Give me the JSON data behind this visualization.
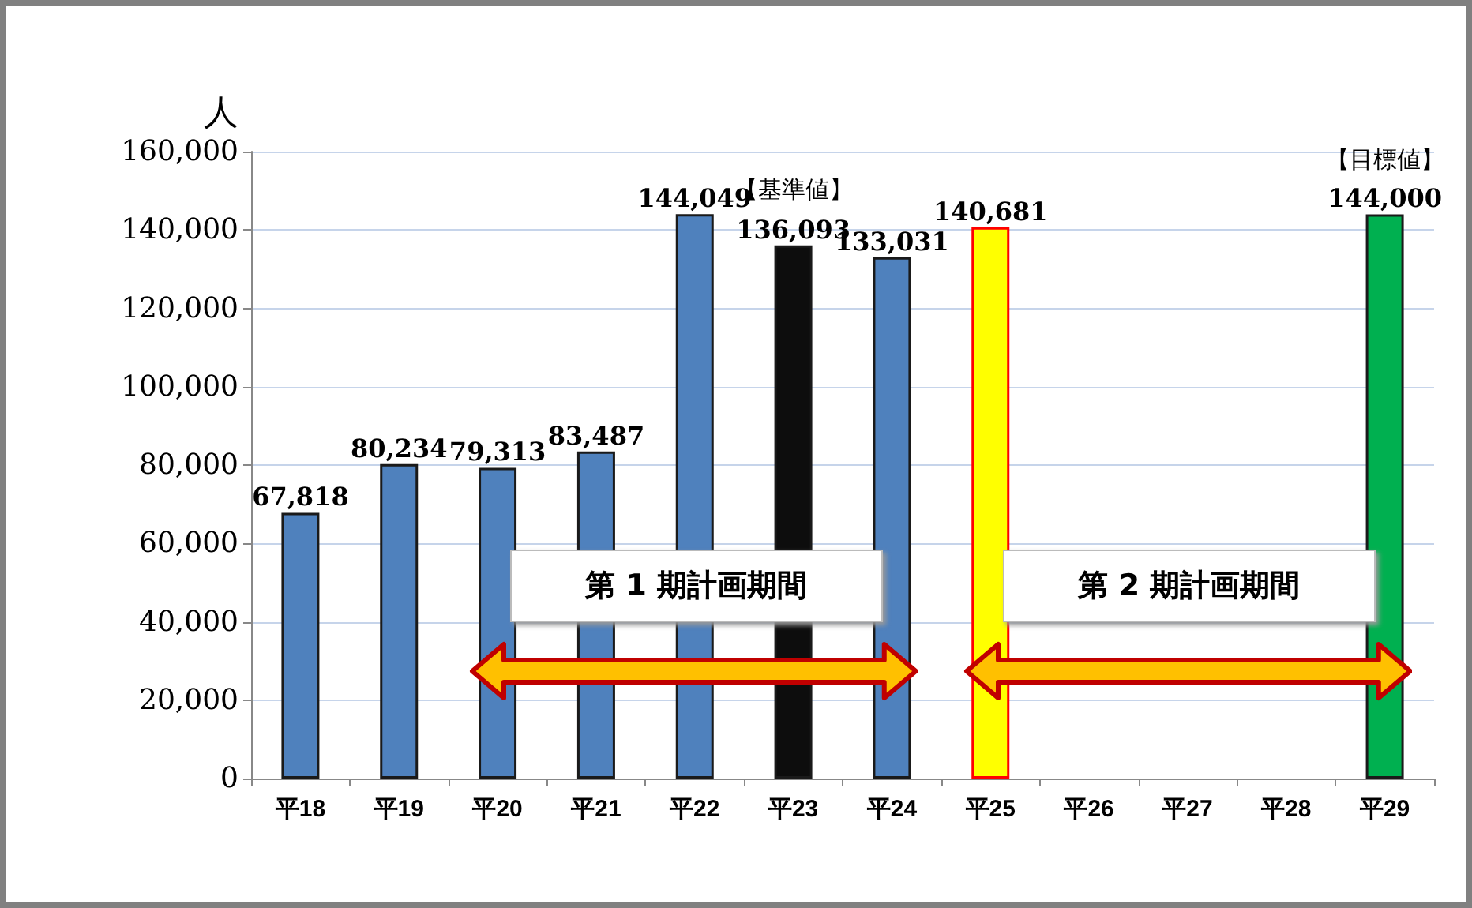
{
  "chart_data": {
    "type": "bar",
    "ylabel": "人",
    "categories": [
      "平18",
      "平19",
      "平20",
      "平21",
      "平22",
      "平23",
      "平24",
      "平25",
      "平26",
      "平27",
      "平28",
      "平29"
    ],
    "values": [
      67818,
      80234,
      79313,
      83487,
      144049,
      136093,
      133031,
      140681,
      null,
      null,
      null,
      144000
    ],
    "value_labels": [
      "67,818",
      "80,234",
      "79,313",
      "83,487",
      "144,049",
      "136,093",
      "133,031",
      "140,681",
      null,
      null,
      null,
      "144,000"
    ],
    "colors": [
      "#4f81bd",
      "#4f81bd",
      "#4f81bd",
      "#4f81bd",
      "#4f81bd",
      "#0d0d0d",
      "#4f81bd",
      "#ffff00",
      "#ffffff",
      "#ffffff",
      "#ffffff",
      "#00b050"
    ],
    "ylim": [
      0,
      160000
    ],
    "yticks": [
      0,
      {
        "value": 20000,
        "label": "20,000"
      },
      {
        "value": 40000,
        "label": "40,000"
      },
      {
        "value": 60000,
        "label": "60,000"
      },
      {
        "value": 80000,
        "label": "80,000"
      },
      {
        "value": 100000,
        "label": "100,000"
      },
      {
        "value": 120000,
        "label": "120,000"
      },
      {
        "value": 140000,
        "label": "140,000"
      },
      {
        "value": 160000,
        "label": "160,000"
      }
    ],
    "grid": "y",
    "annotations": [
      {
        "text": "【基準値】",
        "x": "平23",
        "y": 136093
      },
      {
        "text": "【目標値】",
        "x": "平29",
        "y": 144000
      },
      "第 1 期計画期間",
      "第 2 期計画期間"
    ]
  }
}
